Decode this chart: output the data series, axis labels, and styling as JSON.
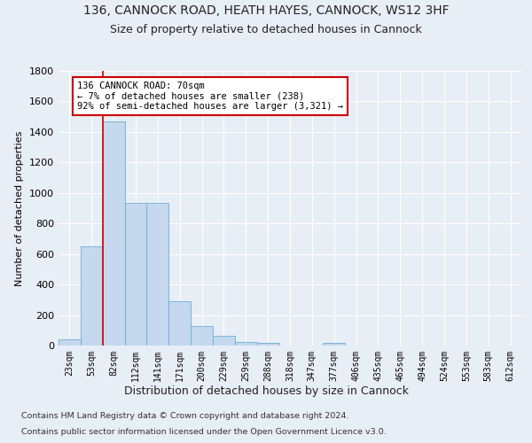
{
  "title1": "136, CANNOCK ROAD, HEATH HAYES, CANNOCK, WS12 3HF",
  "title2": "Size of property relative to detached houses in Cannock",
  "xlabel": "Distribution of detached houses by size in Cannock",
  "ylabel": "Number of detached properties",
  "footer1": "Contains HM Land Registry data © Crown copyright and database right 2024.",
  "footer2": "Contains public sector information licensed under the Open Government Licence v3.0.",
  "bar_labels": [
    "23sqm",
    "53sqm",
    "82sqm",
    "112sqm",
    "141sqm",
    "171sqm",
    "200sqm",
    "229sqm",
    "259sqm",
    "288sqm",
    "318sqm",
    "347sqm",
    "377sqm",
    "406sqm",
    "435sqm",
    "465sqm",
    "494sqm",
    "524sqm",
    "553sqm",
    "583sqm",
    "612sqm"
  ],
  "bar_values": [
    40,
    650,
    1470,
    935,
    935,
    290,
    125,
    65,
    25,
    15,
    0,
    0,
    15,
    0,
    0,
    0,
    0,
    0,
    0,
    0,
    0
  ],
  "bar_color": "#c5d8ed",
  "bar_edge_color": "#6aaed6",
  "annotation_text": "136 CANNOCK ROAD: 70sqm\n← 7% of detached houses are smaller (238)\n92% of semi-detached houses are larger (3,321) →",
  "annotation_box_color": "#ffffff",
  "annotation_box_edge": "#cc0000",
  "vline_color": "#cc0000",
  "vline_x": 1.5,
  "ylim": [
    0,
    1800
  ],
  "yticks": [
    0,
    200,
    400,
    600,
    800,
    1000,
    1200,
    1400,
    1600,
    1800
  ],
  "bg_color": "#e8eef5",
  "plot_bg": "#e8eef5",
  "grid_color": "#ffffff",
  "title1_fontsize": 10,
  "title2_fontsize": 9,
  "bar_width": 1.0
}
